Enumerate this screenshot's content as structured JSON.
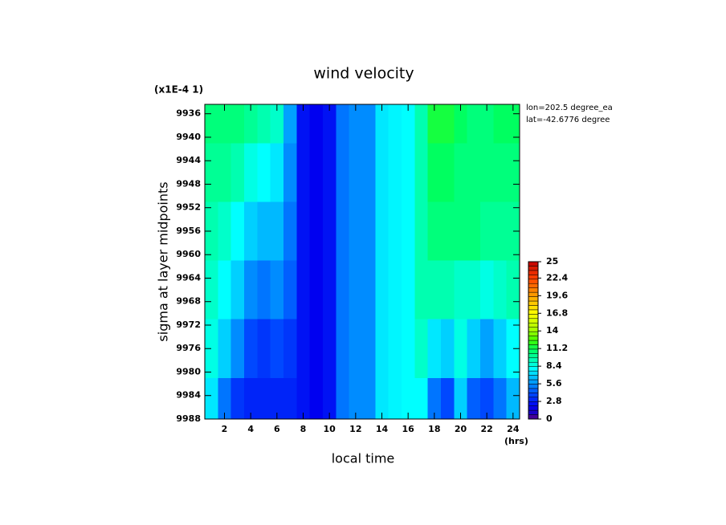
{
  "chart_data": {
    "type": "contour",
    "title": "wind velocity",
    "x_label": "local time",
    "y_label": "sigma at layer midpoints",
    "y_scale_note": "(x1E-4 1)",
    "x_unit": "(hrs)",
    "annotations": [
      "lon=202.5 degree_ea",
      "lat=-42.6776 degree"
    ],
    "x": [
      1,
      2,
      3,
      4,
      5,
      6,
      7,
      8,
      9,
      10,
      11,
      12,
      13,
      14,
      15,
      16,
      17,
      18,
      19,
      20,
      21,
      22,
      23,
      24
    ],
    "y": [
      9936,
      9946,
      9956,
      9966,
      9976,
      9986
    ],
    "values": [
      [
        10.5,
        10.5,
        10.5,
        10,
        9.5,
        9,
        6,
        2.5,
        2,
        2.5,
        5,
        5.5,
        5.5,
        7.5,
        7.8,
        8,
        9.5,
        11.5,
        11.5,
        11,
        10.5,
        10.5,
        11,
        11
      ],
      [
        10,
        10,
        9.5,
        8.5,
        8,
        7.5,
        5.5,
        2.5,
        2,
        2.5,
        5,
        5.5,
        5.5,
        7.5,
        7.8,
        8,
        9.5,
        11,
        11,
        10.5,
        10.5,
        10.5,
        10.5,
        10.5
      ],
      [
        9.5,
        9,
        8,
        7,
        6.5,
        6.5,
        5,
        2.5,
        2,
        2.5,
        5,
        5.5,
        5.5,
        7.5,
        7.8,
        8,
        9.5,
        10.5,
        10.5,
        10.5,
        10.5,
        10,
        10,
        10
      ],
      [
        9,
        8,
        7,
        5.5,
        5,
        5.5,
        4.5,
        2.5,
        2,
        2.5,
        5,
        5.5,
        5.5,
        7.5,
        7.8,
        8,
        9.5,
        9.5,
        9.5,
        9,
        9,
        8.5,
        9,
        9.5
      ],
      [
        8.5,
        7,
        5.5,
        4,
        3.5,
        4,
        3.5,
        2.5,
        2,
        2.5,
        5,
        5.5,
        5.5,
        7.5,
        7.8,
        8,
        9,
        7.5,
        7,
        8.5,
        7,
        6,
        7,
        8
      ],
      [
        7.5,
        5,
        3.5,
        3,
        3,
        3,
        3,
        2.5,
        2,
        2.5,
        5,
        5.5,
        5.5,
        7.5,
        7.8,
        8,
        8,
        5,
        4,
        7,
        4.5,
        4,
        5,
        6.5
      ]
    ],
    "xlim": [
      0.5,
      24.5
    ],
    "xticks": [
      2,
      4,
      6,
      8,
      10,
      12,
      14,
      16,
      18,
      20,
      22,
      24
    ],
    "ylim": [
      9934.4,
      9988
    ],
    "y_inverted": true,
    "yticks": [
      9936,
      9940,
      9944,
      9948,
      9952,
      9956,
      9960,
      9964,
      9968,
      9972,
      9976,
      9980,
      9984,
      9988
    ],
    "zlim": [
      0,
      25
    ],
    "zticks": [
      0,
      2.8,
      5.6,
      8.4,
      11.2,
      14,
      16.8,
      19.6,
      22.4,
      25
    ],
    "colormap": [
      [
        0,
        "#5a0080"
      ],
      [
        1,
        "#1a00c8"
      ],
      [
        2,
        "#0000f0"
      ],
      [
        4,
        "#0048ff"
      ],
      [
        5.6,
        "#0090ff"
      ],
      [
        7,
        "#00d0ff"
      ],
      [
        8,
        "#00ffff"
      ],
      [
        9.5,
        "#00ffb0"
      ],
      [
        11,
        "#00ff60"
      ],
      [
        12.5,
        "#40ff00"
      ],
      [
        14,
        "#a0ff00"
      ],
      [
        16.8,
        "#ffff00"
      ],
      [
        19.6,
        "#ffa000"
      ],
      [
        22.4,
        "#ff4000"
      ],
      [
        25,
        "#c00000"
      ]
    ]
  }
}
